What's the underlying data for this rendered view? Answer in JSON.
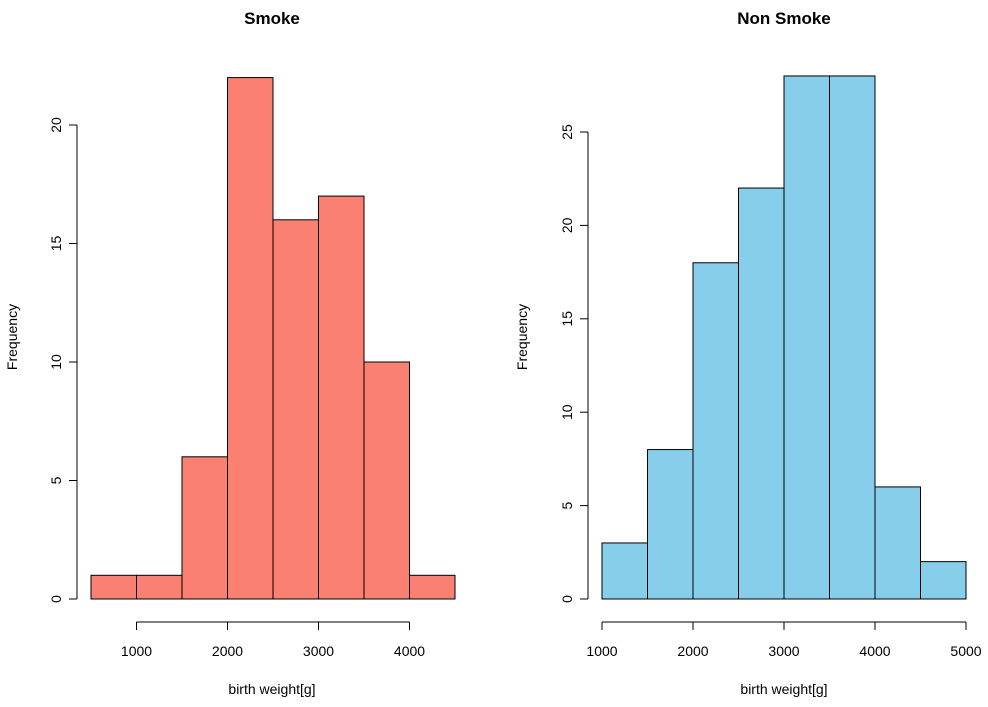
{
  "chart_data": [
    {
      "type": "bar",
      "title": "Smoke",
      "xlabel": "birth weight[g]",
      "ylabel": "Frequency",
      "bin_edges": [
        500,
        1000,
        1500,
        2000,
        2500,
        3000,
        3500,
        4000,
        4500
      ],
      "categories": [
        "500-1000",
        "1000-1500",
        "1500-2000",
        "2000-2500",
        "2500-3000",
        "3000-3500",
        "3500-4000",
        "4000-4500"
      ],
      "values": [
        1,
        1,
        6,
        22,
        16,
        17,
        10,
        1
      ],
      "xticks": [
        "1000",
        "2000",
        "3000",
        "4000"
      ],
      "yticks": [
        "0",
        "5",
        "10",
        "15",
        "20"
      ],
      "xlim": [
        500,
        4500
      ],
      "ylim": [
        0,
        22
      ],
      "color": "#FA8072",
      "grid": false
    },
    {
      "type": "bar",
      "title": "Non Smoke",
      "xlabel": "birth weight[g]",
      "ylabel": "Frequency",
      "bin_edges": [
        1000,
        1500,
        2000,
        2500,
        3000,
        3500,
        4000,
        4500,
        5000
      ],
      "categories": [
        "1000-1500",
        "1500-2000",
        "2000-2500",
        "2500-3000",
        "3000-3500",
        "3500-4000",
        "4000-4500",
        "4500-5000"
      ],
      "values": [
        3,
        8,
        18,
        22,
        28,
        28,
        6,
        2
      ],
      "xticks": [
        "1000",
        "2000",
        "3000",
        "4000",
        "5000"
      ],
      "yticks": [
        "0",
        "5",
        "10",
        "15",
        "20",
        "25"
      ],
      "xlim": [
        1000,
        5000
      ],
      "ylim": [
        0,
        28
      ],
      "color": "#87CEEB",
      "grid": false
    }
  ],
  "left": {
    "title": "Smoke",
    "xlabel": "birth weight[g]",
    "ylabel": "Frequency",
    "color": "#FA8072"
  },
  "right": {
    "title": "Non Smoke",
    "xlabel": "birth weight[g]",
    "ylabel": "Frequency",
    "color": "#87CEEB"
  }
}
